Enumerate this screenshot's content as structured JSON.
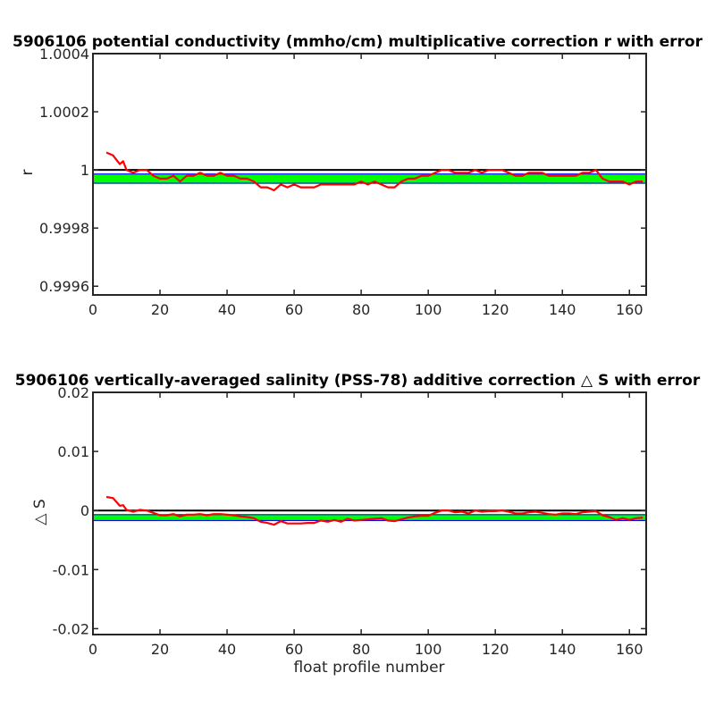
{
  "chart_data": [
    {
      "type": "line",
      "title": "5906106 potential conductivity (mmho/cm) multiplicative correction r with error",
      "xlabel": "",
      "ylabel": "r",
      "xlim": [
        0,
        165
      ],
      "ylim": [
        0.99957,
        1.0004
      ],
      "xticks": [
        "0",
        "20",
        "40",
        "60",
        "80",
        "100",
        "120",
        "140",
        "160"
      ],
      "yticks": [
        "0.9996",
        "0.9998",
        "1",
        "1.0002",
        "1.0004"
      ],
      "grid": false,
      "reference_line": 1,
      "error_band": {
        "center": 0.99997,
        "half_width": 1.6e-05
      },
      "x": [
        4,
        6,
        8,
        9,
        10,
        12,
        14,
        16,
        18,
        20,
        22,
        24,
        26,
        28,
        30,
        32,
        34,
        36,
        38,
        40,
        42,
        44,
        46,
        48,
        50,
        52,
        54,
        56,
        58,
        60,
        62,
        64,
        66,
        68,
        70,
        72,
        74,
        76,
        78,
        80,
        82,
        84,
        86,
        88,
        90,
        92,
        94,
        96,
        98,
        100,
        102,
        104,
        106,
        108,
        110,
        112,
        114,
        116,
        118,
        120,
        122,
        124,
        126,
        128,
        130,
        132,
        134,
        136,
        138,
        140,
        142,
        144,
        146,
        148,
        150,
        152,
        154,
        156,
        158,
        160,
        162,
        164
      ],
      "values": [
        1.00006,
        1.00005,
        1.00002,
        1.00003,
        1.0,
        0.99999,
        1.0,
        1.0,
        0.99998,
        0.99997,
        0.99997,
        0.99998,
        0.99996,
        0.99998,
        0.99998,
        0.99999,
        0.99998,
        0.99998,
        0.99999,
        0.99998,
        0.99998,
        0.99997,
        0.99997,
        0.99996,
        0.99994,
        0.99994,
        0.99993,
        0.99995,
        0.99994,
        0.99995,
        0.99994,
        0.99994,
        0.99994,
        0.99995,
        0.99995,
        0.99995,
        0.99995,
        0.99995,
        0.99995,
        0.99996,
        0.99995,
        0.99996,
        0.99995,
        0.99994,
        0.99994,
        0.99996,
        0.99997,
        0.99997,
        0.99998,
        0.99998,
        0.99999,
        1.0,
        1.0,
        0.99999,
        0.99999,
        0.99999,
        1.0,
        0.99999,
        1.0,
        1.0,
        1.0,
        0.99999,
        0.99998,
        0.99998,
        0.99999,
        0.99999,
        0.99999,
        0.99998,
        0.99998,
        0.99998,
        0.99998,
        0.99998,
        0.99999,
        0.99999,
        1.0,
        0.99997,
        0.99996,
        0.99996,
        0.99996,
        0.99995,
        0.99996,
        0.99996
      ],
      "series_color": "#ff0000",
      "band_color": "#00ff00",
      "band_edge_color": "#0000ff"
    },
    {
      "type": "line",
      "title": "5906106 vertically-averaged salinity (PSS-78) additive correction △ S with error",
      "xlabel": "float profile number",
      "ylabel": "△ S",
      "xlim": [
        0,
        165
      ],
      "ylim": [
        -0.021,
        0.02
      ],
      "xticks": [
        "0",
        "20",
        "40",
        "60",
        "80",
        "100",
        "120",
        "140",
        "160"
      ],
      "yticks": [
        "-0.02",
        "-0.01",
        "0",
        "0.01",
        "0.02"
      ],
      "grid": false,
      "reference_line": 0,
      "error_band": {
        "center": -0.0012,
        "half_width": 0.0005
      },
      "x": [
        4,
        6,
        8,
        9,
        10,
        12,
        14,
        16,
        18,
        20,
        22,
        24,
        26,
        28,
        30,
        32,
        34,
        36,
        38,
        40,
        42,
        44,
        46,
        48,
        50,
        52,
        54,
        56,
        58,
        60,
        62,
        64,
        66,
        68,
        70,
        72,
        74,
        76,
        78,
        80,
        82,
        84,
        86,
        88,
        90,
        92,
        94,
        96,
        98,
        100,
        102,
        104,
        106,
        108,
        110,
        112,
        114,
        116,
        118,
        120,
        122,
        124,
        126,
        128,
        130,
        132,
        134,
        136,
        138,
        140,
        142,
        144,
        146,
        148,
        150,
        152,
        154,
        156,
        158,
        160,
        162,
        164
      ],
      "values": [
        0.0023,
        0.0021,
        0.0008,
        0.0009,
        0.0001,
        -0.0002,
        0.0001,
        0.0,
        -0.0004,
        -0.0008,
        -0.0008,
        -0.0006,
        -0.001,
        -0.0007,
        -0.0007,
        -0.0006,
        -0.0008,
        -0.0006,
        -0.0006,
        -0.0007,
        -0.0008,
        -0.001,
        -0.0011,
        -0.0013,
        -0.0019,
        -0.0021,
        -0.0024,
        -0.0018,
        -0.0022,
        -0.0022,
        -0.0022,
        -0.0021,
        -0.0021,
        -0.0017,
        -0.0019,
        -0.0016,
        -0.0019,
        -0.0014,
        -0.0017,
        -0.0016,
        -0.0015,
        -0.0014,
        -0.0013,
        -0.0017,
        -0.0018,
        -0.0015,
        -0.0012,
        -0.001,
        -0.0009,
        -0.0009,
        -0.0004,
        0.0,
        0.0,
        -0.0003,
        -0.0002,
        -0.0005,
        0.0,
        -0.0002,
        -0.0001,
        -0.0001,
        0.0,
        -0.0002,
        -0.0005,
        -0.0005,
        -0.0003,
        -0.0002,
        -0.0004,
        -0.0006,
        -0.0007,
        -0.0005,
        -0.0005,
        -0.0006,
        -0.0003,
        -0.0002,
        -0.0001,
        -0.0008,
        -0.0011,
        -0.0016,
        -0.0013,
        -0.0016,
        -0.0013,
        -0.0012
      ],
      "series_color": "#ff0000",
      "band_color": "#00ff00",
      "band_edge_color": "#0000ff"
    }
  ]
}
